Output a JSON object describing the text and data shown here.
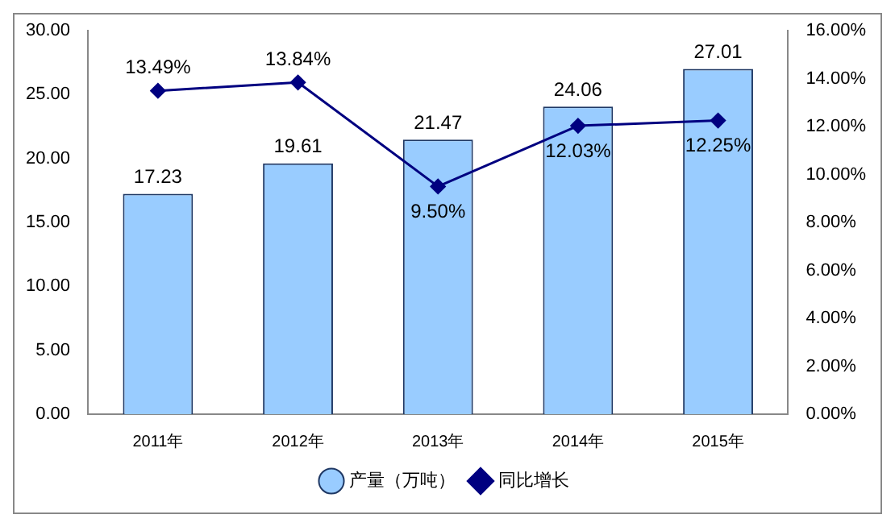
{
  "chart_data": {
    "type": "bar",
    "categories": [
      "2011年",
      "2012年",
      "2013年",
      "2014年",
      "2015年"
    ],
    "series": [
      {
        "name": "产量（万吨）",
        "color": "#99ccff",
        "values": [
          17.23,
          19.61,
          21.47,
          24.06,
          27.01
        ],
        "value_labels": [
          "17.23",
          "19.61",
          "21.47",
          "24.06",
          "27.01"
        ]
      },
      {
        "name": "同比增长",
        "type": "line",
        "axis": "y2",
        "color": "#000080",
        "values": [
          13.49,
          13.84,
          9.5,
          12.03,
          12.25
        ],
        "value_labels": [
          "13.49%",
          "13.84%",
          "9.50%",
          "12.03%",
          "12.25%"
        ]
      }
    ],
    "ylim": [
      0,
      30
    ],
    "yticks": [
      {
        "value": 0,
        "label": "0.00"
      },
      {
        "value": 5,
        "label": "5.00"
      },
      {
        "value": 10,
        "label": "10.00"
      },
      {
        "value": 15,
        "label": "15.00"
      },
      {
        "value": 20,
        "label": "20.00"
      },
      {
        "value": 25,
        "label": "25.00"
      },
      {
        "value": 30,
        "label": "30.00"
      }
    ],
    "y2lim": [
      0,
      16
    ],
    "y2ticks": [
      {
        "value": 0,
        "label": "0.00%"
      },
      {
        "value": 2,
        "label": "2.00%"
      },
      {
        "value": 4,
        "label": "4.00%"
      },
      {
        "value": 6,
        "label": "6.00%"
      },
      {
        "value": 8,
        "label": "8.00%"
      },
      {
        "value": 10,
        "label": "10.00%"
      },
      {
        "value": 12,
        "label": "12.00%"
      },
      {
        "value": 14,
        "label": "14.00%"
      },
      {
        "value": 16,
        "label": "16.00%"
      }
    ],
    "legend": "bottom",
    "marker": "diamond"
  }
}
